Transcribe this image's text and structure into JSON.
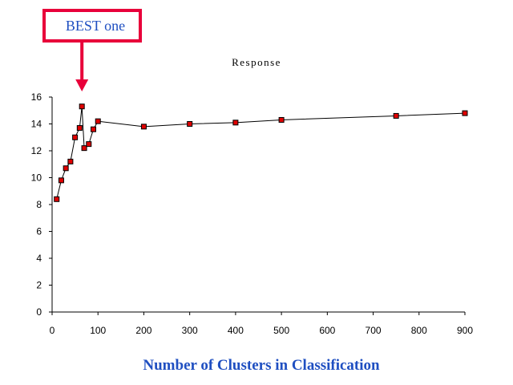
{
  "colors": {
    "callout": "#e8003a",
    "callout_text": "#1f4fc1",
    "axis_label": "#1f4fc1",
    "marker_fill": "#e00000",
    "line": "#000000"
  },
  "callout": {
    "text": "BEST one",
    "x": 65
  },
  "chart_data": {
    "type": "line",
    "title": "Response",
    "xlabel": "Number of Clusters in Classification",
    "ylabel": "",
    "xlim": [
      0,
      900
    ],
    "ylim": [
      0,
      16
    ],
    "xticks": [
      0,
      100,
      200,
      300,
      400,
      500,
      600,
      700,
      800,
      900
    ],
    "yticks": [
      0,
      2,
      4,
      6,
      8,
      10,
      12,
      14,
      16
    ],
    "grid": false,
    "legend": "none",
    "series": [
      {
        "x": [
          10,
          20,
          30,
          40,
          50,
          60,
          65,
          70,
          80,
          90,
          100,
          200,
          300,
          400,
          500,
          750,
          900
        ],
        "y": [
          8.4,
          9.8,
          10.7,
          11.2,
          13.0,
          13.7,
          15.3,
          12.2,
          12.5,
          13.6,
          14.2,
          13.8,
          14.0,
          14.1,
          14.3,
          14.6,
          14.8
        ]
      }
    ]
  }
}
